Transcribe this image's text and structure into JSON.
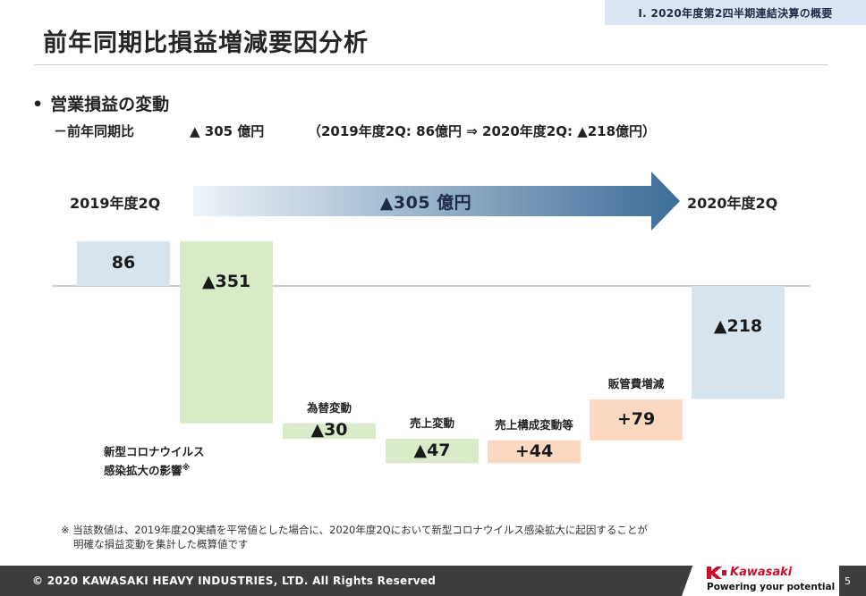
{
  "header": {
    "section_tag": "Ⅰ. 2020年度第2四半期連結決算の概要",
    "title": "前年同期比損益増減要因分析"
  },
  "bullet": {
    "dot": "•",
    "text": "営業損益の変動"
  },
  "sub_line": {
    "lead": "－前年同期比",
    "delta": "▲ 305 億円",
    "detail": "（2019年度2Q: 86億円 ⇒ 2020年度2Q: ▲218億円）"
  },
  "period_labels": {
    "start": "2019年度2Q",
    "end": "2020年度2Q"
  },
  "arrow_label": "▲305 億円",
  "annotation": {
    "line1": "新型コロナウイルス",
    "line2": "感染拡大の影響",
    "mark": "※"
  },
  "footnote": {
    "line1": "※ 当該数値は、2019年度2Q実績を平常値とした場合に、2020年度2Qにおいて新型コロナウイルス感染拡大に起因することが",
    "line2": "明確な損益変動を集計した概算値です"
  },
  "footer": {
    "copyright": "© 2020 KAWASAKI HEAVY INDUSTRIES, LTD. All Rights Reserved",
    "brand": "Kawasaki",
    "tagline": "Powering your potential",
    "page": "5"
  },
  "colors": {
    "blue_bar": "#d7e4ee",
    "green_bar": "#d8eac8",
    "orange_bar": "#fbd9c0",
    "arrow_start": "#eef3f8",
    "arrow_end": "#3c6d99"
  },
  "chart_data": {
    "type": "bar",
    "subtype": "waterfall",
    "baseline": 0,
    "ylim": [
      -400,
      100
    ],
    "steps": [
      {
        "category": "",
        "label": "86",
        "value": 86,
        "start": 0,
        "end": 86,
        "color": "blue_bar"
      },
      {
        "category": "",
        "label": "▲351",
        "value": -351,
        "start": 86,
        "end": -265,
        "color": "green_bar"
      },
      {
        "category": "為替変動",
        "label": "▲30",
        "value": -30,
        "start": -265,
        "end": -295,
        "color": "green_bar"
      },
      {
        "category": "売上変動",
        "label": "▲47",
        "value": -47,
        "start": -295,
        "end": -342,
        "color": "green_bar"
      },
      {
        "category": "売上構成変動等",
        "label": "+44",
        "value": 44,
        "start": -342,
        "end": -298,
        "color": "orange_bar"
      },
      {
        "category": "販管費増減",
        "label": "+79",
        "value": 79,
        "start": -298,
        "end": -219,
        "color": "orange_bar"
      },
      {
        "category": "",
        "label": "▲218",
        "value": -218,
        "start": 0,
        "end": -218,
        "color": "blue_bar"
      }
    ]
  }
}
